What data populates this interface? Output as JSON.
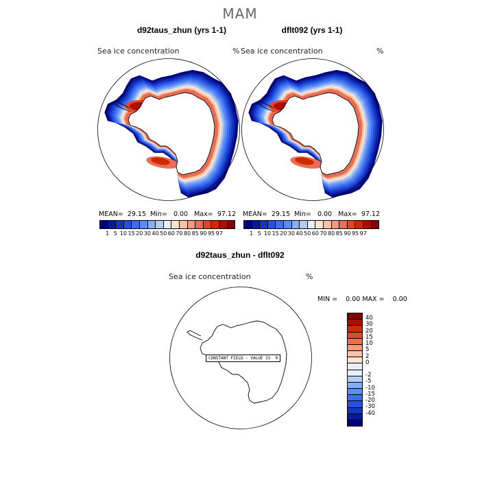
{
  "figure": {
    "season_title": "MAM"
  },
  "panel_left": {
    "title": "d92taus_zhun (yrs 1-1)",
    "variable_label": "Sea ice concentration",
    "units": "%",
    "stats": {
      "mean_label": "MEAN=",
      "mean": "29.15",
      "min_label": "Min=",
      "min": "0.00",
      "max_label": "Max=",
      "max": "97.12"
    }
  },
  "panel_right": {
    "title": "dflt092 (yrs 1-1)",
    "variable_label": "Sea ice concentration",
    "units": "%",
    "stats": {
      "mean_label": "MEAN=",
      "mean": "29.15",
      "min_label": "Min=",
      "min": "0.00",
      "max_label": "Max=",
      "max": "97.12"
    }
  },
  "colorbar_top": {
    "colors": [
      "#00007a",
      "#0a1a9c",
      "#1534c0",
      "#2550e0",
      "#3d6ef0",
      "#5d8cf5",
      "#86acf6",
      "#b3cdf6",
      "#e6eefa",
      "#fde3d0",
      "#f8c2a6",
      "#f29a7c",
      "#ec6d52",
      "#e24624",
      "#cc2a00",
      "#a81000",
      "#860000"
    ],
    "tick_labels": [
      "1",
      "5",
      "10",
      "15",
      "20",
      "30",
      "40",
      "50",
      "60",
      "70",
      "80",
      "85",
      "90",
      "95",
      "97"
    ]
  },
  "panel_diff": {
    "title": "d92taus_zhun - dflt092",
    "variable_label": "Sea ice concentration",
    "units": "%",
    "minmax_text": "MIN =    0.00 MAX =    0.00",
    "constant_field_text": "CONSTANT FIELD - VALUE IS  0"
  },
  "colorbar_diff": {
    "colors": [
      "#860000",
      "#a81000",
      "#cc2a00",
      "#e24624",
      "#ec6d52",
      "#f29a7c",
      "#f8c2a6",
      "#fde3d0",
      "#e6eefa",
      "#e6eefa",
      "#b3cdf6",
      "#86acf6",
      "#5d8cf5",
      "#3d6ef0",
      "#2550e0",
      "#1534c0",
      "#0a1a9c",
      "#00007a"
    ],
    "tick_labels": [
      "40",
      "30",
      "20",
      "15",
      "10",
      "5",
      "2",
      "0",
      "-2",
      "-5",
      "-10",
      "-15",
      "-20",
      "-30",
      "-40"
    ]
  }
}
